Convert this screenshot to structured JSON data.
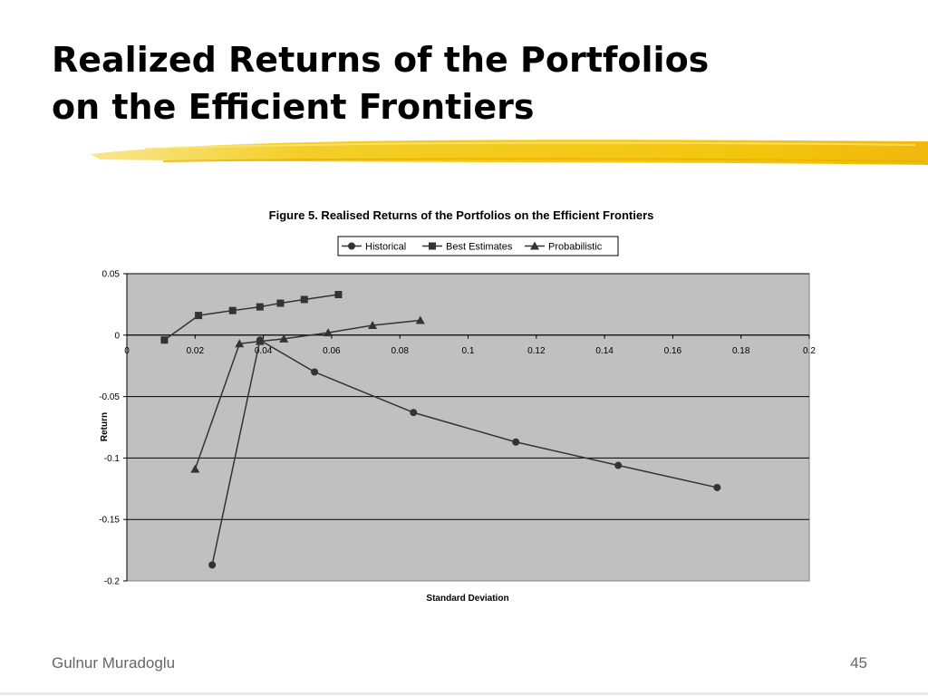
{
  "slide": {
    "title_line1": "Realized Returns of the Portfolios",
    "title_line2": "on the Efficient Frontiers",
    "author": "Gulnur Muradoglu",
    "page_number": "45",
    "accent_color": "#f2c200"
  },
  "chart_data": {
    "type": "line",
    "title": "Figure 5. Realised  Returns of the Portfolios on the Efficient Frontiers",
    "xlabel": "Standard Deviation",
    "ylabel": "Return",
    "xlim": [
      0,
      0.2
    ],
    "ylim": [
      -0.2,
      0.05
    ],
    "x_ticks": [
      "0",
      "0.02",
      "0.04",
      "0.06",
      "0.08",
      "0.1",
      "0.12",
      "0.14",
      "0.16",
      "0.18",
      "0.2"
    ],
    "y_ticks": [
      "0.05",
      "0",
      "-0.05",
      "-0.1",
      "-0.15",
      "-0.2"
    ],
    "legend_position": "top",
    "grid": "horizontal",
    "plot_background": "#c0c0c0",
    "series": [
      {
        "name": "Historical",
        "marker": "circle",
        "points": [
          [
            0.025,
            -0.187
          ],
          [
            0.039,
            -0.004
          ],
          [
            0.055,
            -0.03
          ],
          [
            0.084,
            -0.063
          ],
          [
            0.114,
            -0.087
          ],
          [
            0.144,
            -0.106
          ],
          [
            0.173,
            -0.124
          ]
        ]
      },
      {
        "name": "Best Estimates",
        "marker": "square",
        "points": [
          [
            0.011,
            -0.004
          ],
          [
            0.021,
            0.016
          ],
          [
            0.031,
            0.02
          ],
          [
            0.039,
            0.023
          ],
          [
            0.045,
            0.026
          ],
          [
            0.052,
            0.029
          ],
          [
            0.062,
            0.033
          ]
        ]
      },
      {
        "name": "Probabilistic",
        "marker": "triangle",
        "points": [
          [
            0.02,
            -0.109
          ],
          [
            0.033,
            -0.007
          ],
          [
            0.039,
            -0.005
          ],
          [
            0.046,
            -0.003
          ],
          [
            0.059,
            0.002
          ],
          [
            0.072,
            0.008
          ],
          [
            0.086,
            0.012
          ]
        ]
      }
    ]
  }
}
